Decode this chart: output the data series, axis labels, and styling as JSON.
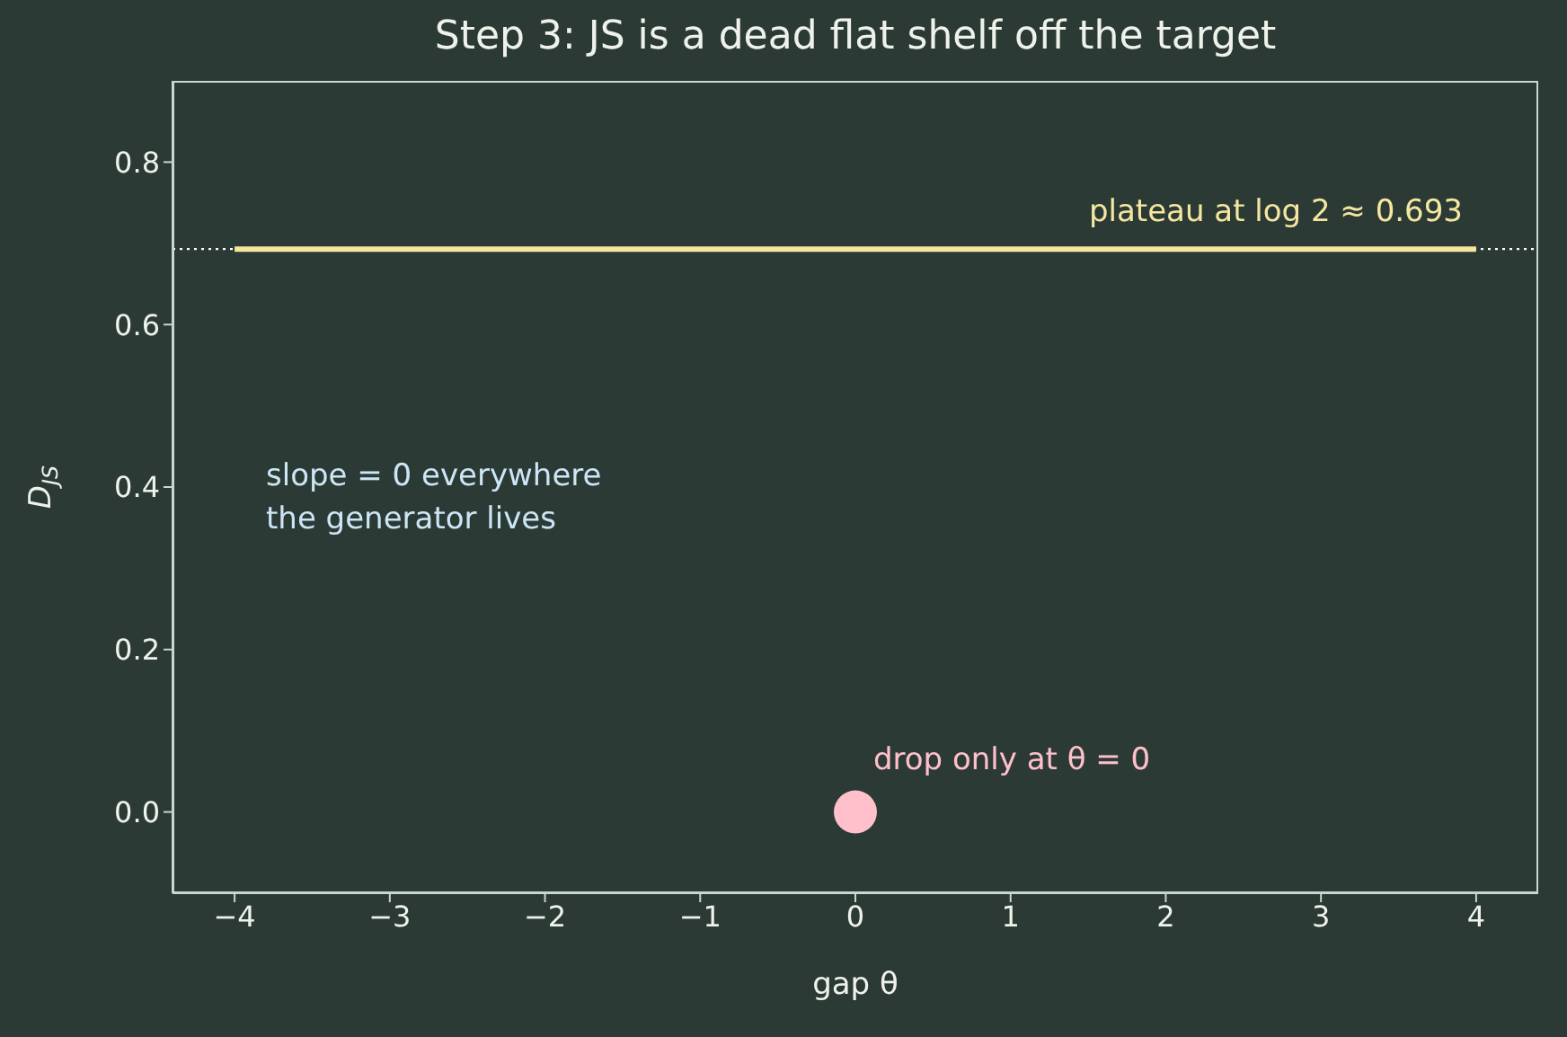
{
  "chart_data": {
    "type": "line",
    "title": "Step 3: JS is a dead flat shelf off the target",
    "xlabel": "gap θ",
    "ylabel": "D$_{JS}$",
    "xlim": [
      -4.4,
      4.4
    ],
    "xticks": [
      {
        "value": -4,
        "label": "−4"
      },
      {
        "value": -3,
        "label": "−3"
      },
      {
        "value": -2,
        "label": "−2"
      },
      {
        "value": -1,
        "label": "−1"
      },
      {
        "value": 0,
        "label": "0"
      },
      {
        "value": 1,
        "label": "1"
      },
      {
        "value": 2,
        "label": "2"
      },
      {
        "value": 3,
        "label": "3"
      },
      {
        "value": 4,
        "label": "4"
      }
    ],
    "ylim": [
      -0.1,
      0.9
    ],
    "yticks": [
      {
        "value": 0,
        "label": "0.0"
      },
      {
        "value": 0.2,
        "label": "0.2"
      },
      {
        "value": 0.4,
        "label": "0.4"
      },
      {
        "value": 0.6,
        "label": "0.6"
      },
      {
        "value": 0.8,
        "label": "0.8"
      }
    ],
    "series": [
      {
        "x": [
          -4,
          4
        ],
        "values": [
          0.693,
          0.693
        ],
        "color": "#f5e6a0",
        "marker": "none"
      },
      {
        "type": "scatter",
        "x": [
          0
        ],
        "values": [
          0
        ],
        "color": "#ffc0cb",
        "marker": "circle"
      }
    ],
    "ref_lines": [
      {
        "axis": "y",
        "value": 0.693,
        "color": "#ffffff",
        "line_style": "dotted"
      }
    ],
    "annotations": [
      "plateau at log 2 ≈ 0.693",
      "slope = 0 everywhere\nthe generator lives",
      "drop only at θ = 0"
    ]
  }
}
